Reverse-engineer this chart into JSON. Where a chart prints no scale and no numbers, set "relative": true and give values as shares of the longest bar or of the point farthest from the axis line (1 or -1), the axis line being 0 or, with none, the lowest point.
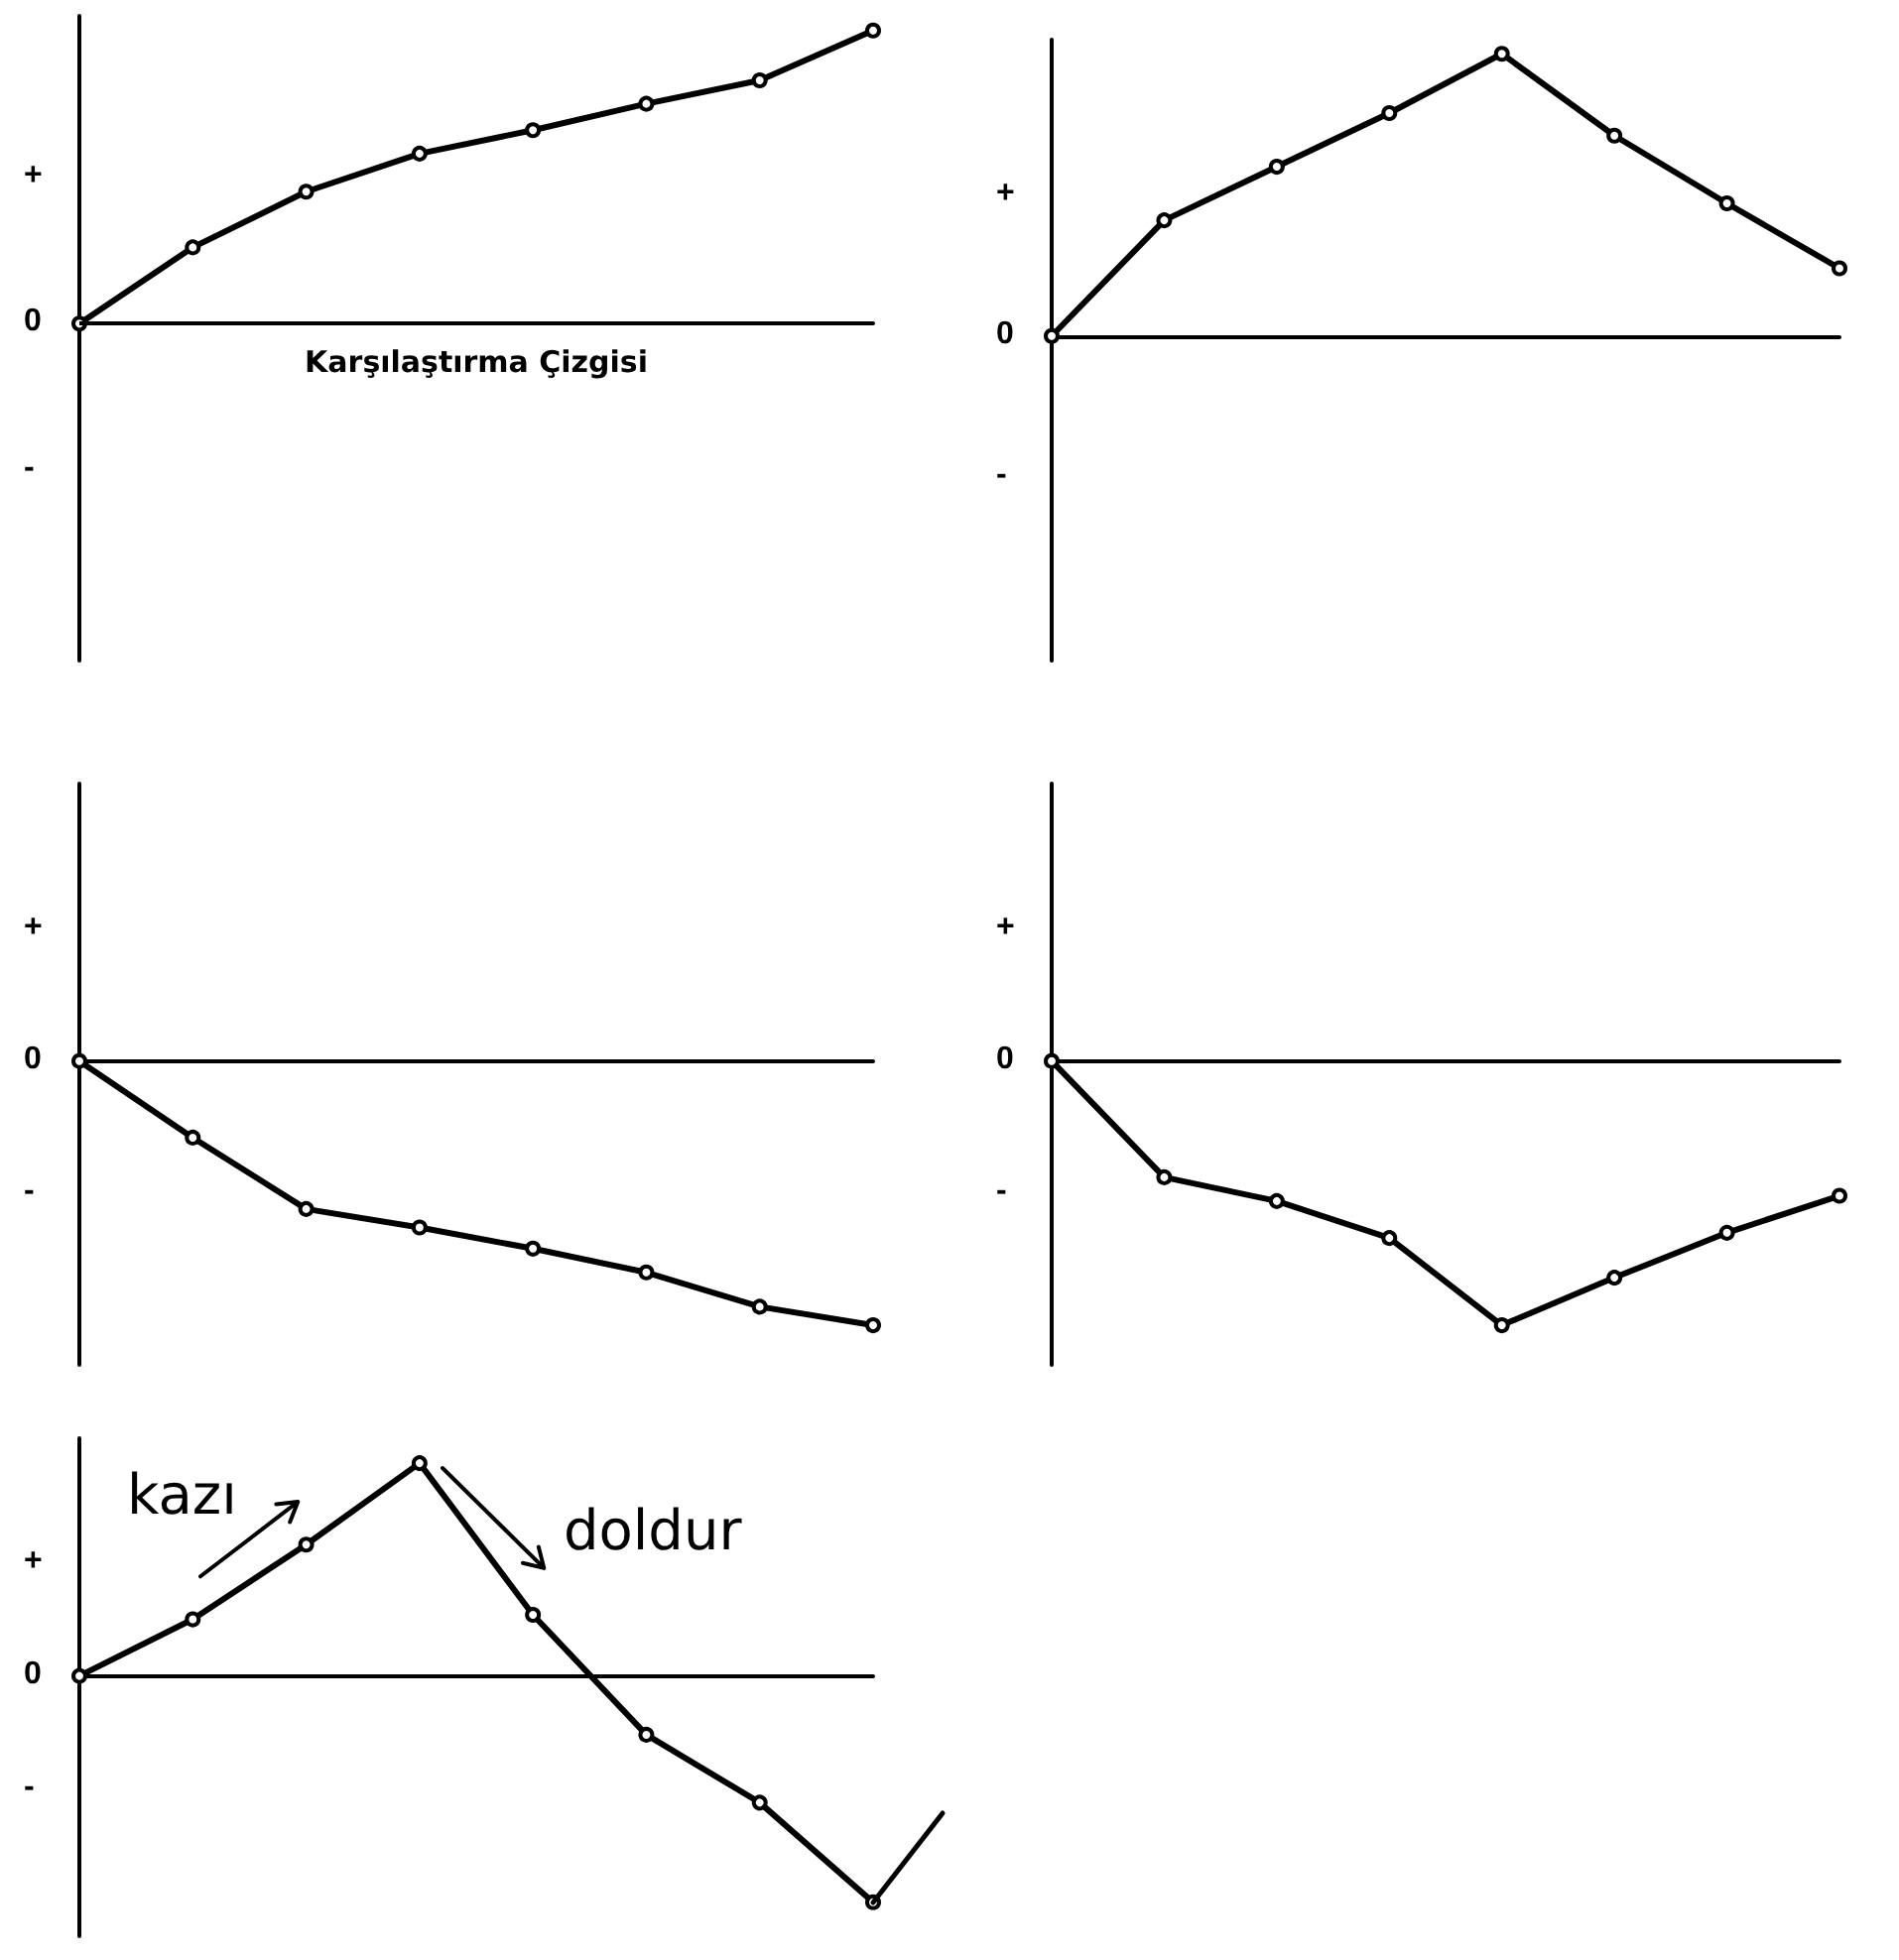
{
  "chart_data": [
    {
      "type": "line",
      "relative": true,
      "categories": [
        null,
        null,
        null,
        null,
        null,
        null,
        null,
        null
      ],
      "color": "#000000",
      "marker": "circle",
      "line_style": "solid",
      "grid": false,
      "values": [
        0,
        0.26,
        0.45,
        0.58,
        0.66,
        0.75,
        0.83,
        1
      ],
      "annotations": [
        "+",
        "0",
        "-"
      ],
      "ref_lines": [
        {
          "axis": "y",
          "value": 0,
          "label": "Karşılaştırma Çizgisi"
        }
      ]
    },
    {
      "type": "line",
      "relative": true,
      "categories": [
        null,
        null,
        null,
        null,
        null,
        null,
        null,
        null
      ],
      "color": "#000000",
      "marker": "circle",
      "line_style": "solid",
      "grid": false,
      "values": [
        0,
        0.41,
        0.6,
        0.79,
        1,
        0.71,
        0.47,
        0.24
      ],
      "annotations": [
        "+",
        "0",
        "-"
      ]
    },
    {
      "type": "line",
      "relative": true,
      "categories": [
        null,
        null,
        null,
        null,
        null,
        null,
        null,
        null
      ],
      "color": "#000000",
      "marker": "circle",
      "line_style": "solid",
      "grid": false,
      "values": [
        0,
        -0.29,
        -0.56,
        -0.63,
        -0.71,
        -0.8,
        -0.93,
        -1
      ],
      "annotations": [
        "+",
        "0",
        "-"
      ]
    },
    {
      "type": "line",
      "relative": true,
      "categories": [
        null,
        null,
        null,
        null,
        null,
        null,
        null,
        null
      ],
      "color": "#000000",
      "marker": "circle",
      "line_style": "solid",
      "grid": false,
      "values": [
        0,
        -0.44,
        -0.53,
        -0.67,
        -1,
        -0.82,
        -0.65,
        -0.51
      ],
      "annotations": [
        "+",
        "0",
        "-"
      ]
    },
    {
      "type": "line",
      "relative": true,
      "categories": [
        null,
        null,
        null,
        null,
        null,
        null,
        null,
        null
      ],
      "color": "#000000",
      "marker": "circle",
      "line_style": "solid",
      "grid": false,
      "values": [
        0,
        0.25,
        0.58,
        0.94,
        0.27,
        -0.26,
        -0.56,
        -1
      ],
      "annotations": [
        "+",
        "0",
        "-",
        "kazı",
        "doldur"
      ]
    }
  ]
}
